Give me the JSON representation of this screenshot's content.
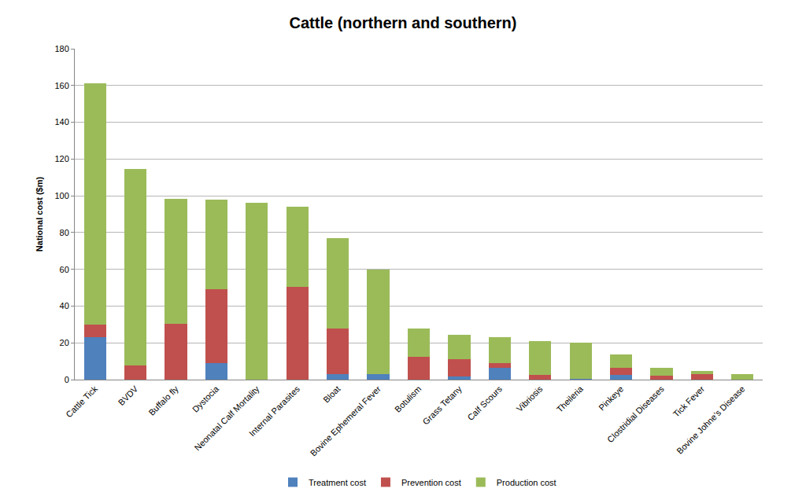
{
  "chart_data": {
    "type": "bar",
    "title": "Cattle (northern and southern)",
    "y_label": "National cost ($m)",
    "categories": [
      "Cattle Tick",
      "BVDV",
      "Buffalo fly",
      "Dystocia",
      "Neonatal Calf Mortality",
      "Internal Parasites",
      "Bloat",
      "Bovine Ephemeral Fever",
      "Botulism",
      "Grass Tetany",
      "Calf Scours",
      "Vibriosis",
      "Theileria",
      "Pinkeye",
      "Clostridial Diseases",
      "Tick Fever",
      "Bovine Johne’s Disease"
    ],
    "series": [
      {
        "name": "Treatment cost",
        "color": "#4f81bd",
        "values": [
          23,
          0,
          0,
          9,
          0,
          0,
          3,
          3,
          0,
          1.5,
          6.5,
          0,
          0.5,
          2.5,
          0,
          0,
          0
        ]
      },
      {
        "name": "Prevention cost",
        "color": "#c0504d",
        "values": [
          7,
          7.5,
          30.5,
          40,
          0,
          50.5,
          25,
          0,
          12.5,
          9.5,
          2.5,
          2.5,
          0,
          4,
          2,
          3,
          0
        ]
      },
      {
        "name": "Production cost",
        "color": "#9bbb59",
        "values": [
          131,
          107,
          68,
          49,
          96,
          43.5,
          49,
          57,
          15.5,
          13.5,
          14,
          18.5,
          19.5,
          7,
          4.5,
          1.5,
          3
        ]
      }
    ],
    "stacked": true,
    "ylim": [
      0,
      180
    ],
    "yticks": [
      0,
      20,
      40,
      60,
      80,
      100,
      120,
      140,
      160,
      180
    ],
    "grid": true,
    "legend": "bottom"
  }
}
